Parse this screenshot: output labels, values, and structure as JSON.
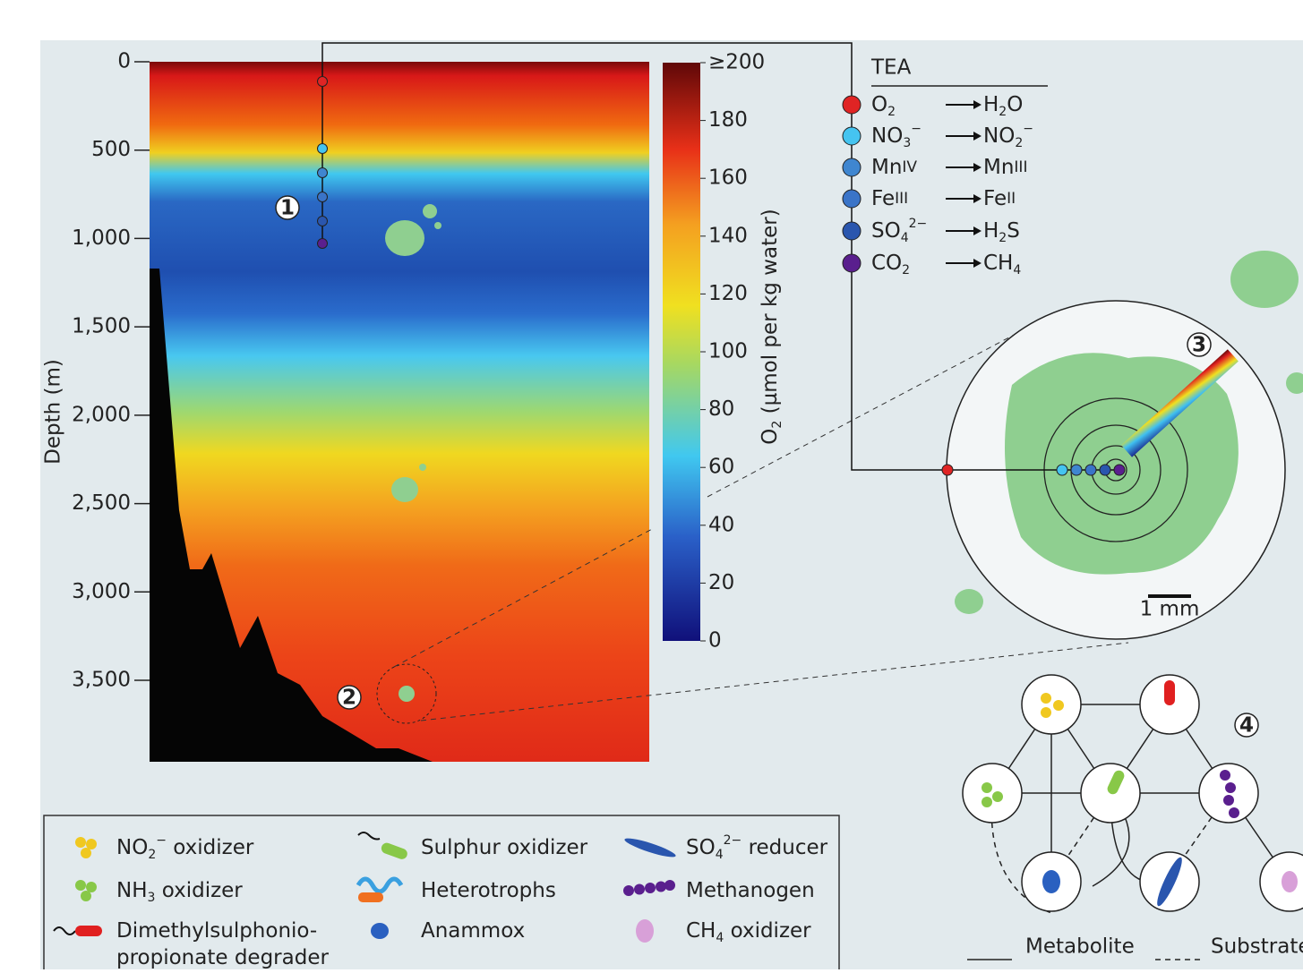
{
  "depth_axis": {
    "label": "Depth (m)",
    "ticks": [
      0,
      500,
      {
        "value": 1000,
        "label": "1,000"
      },
      {
        "value": 1500,
        "label": "1,500"
      },
      {
        "value": 2000,
        "label": "2,000"
      },
      {
        "value": 2500,
        "label": "2,500"
      },
      {
        "value": 3000,
        "label": "3,000"
      },
      {
        "value": 3500,
        "label": "3,500"
      }
    ]
  },
  "colorbar": {
    "label": [
      "O",
      {
        "sub": "2"
      },
      " (µmol per kg water)"
    ],
    "ticks": [
      0,
      20,
      40,
      60,
      80,
      100,
      120,
      140,
      160,
      180,
      {
        "value": 200,
        "label": "≥200"
      }
    ]
  },
  "markers": [
    "1",
    "2",
    "3",
    "4"
  ],
  "tea": {
    "title": "TEA",
    "rows": [
      {
        "from": [
          "O",
          {
            "sub": "2"
          }
        ],
        "to": [
          "H",
          {
            "sub": "2"
          },
          "O"
        ],
        "color": "#e02424"
      },
      {
        "from": [
          "NO",
          {
            "sub": "3"
          },
          {
            "sup": "−"
          }
        ],
        "to": [
          "NO",
          {
            "sub": "2"
          },
          {
            "sup": "−"
          }
        ],
        "color": "#45c4f0"
      },
      {
        "from": [
          "Mn",
          {
            "sc": "IV"
          }
        ],
        "to": [
          "Mn",
          {
            "sc": "III"
          }
        ],
        "color": "#3f86d0"
      },
      {
        "from": [
          "Fe",
          {
            "sc": "III"
          }
        ],
        "to": [
          "Fe",
          {
            "sc": "II"
          }
        ],
        "color": "#3a74c8"
      },
      {
        "from": [
          "SO",
          {
            "sub": "4"
          },
          {
            "sup": "2−"
          }
        ],
        "to": [
          "H",
          {
            "sub": "2"
          },
          "S"
        ],
        "color": "#2a56ae"
      },
      {
        "from": [
          "CO",
          {
            "sub": "2"
          }
        ],
        "to": [
          "CH",
          {
            "sub": "4"
          }
        ],
        "color": "#5a1f8e"
      }
    ]
  },
  "scale_bar": "1 mm",
  "legend": [
    {
      "text": [
        [
          "NO",
          {
            "sub": "2"
          },
          {
            "sup": "−"
          },
          " oxidizer"
        ]
      ],
      "icon": "dots-yellow"
    },
    {
      "text": [
        [
          "NH",
          {
            "sub": "3"
          },
          " oxidizer"
        ]
      ],
      "icon": "dots-green"
    },
    {
      "text": [
        [
          "Dimethylsulphonio-"
        ],
        [
          "propionate degrader"
        ]
      ],
      "icon": "red-rod"
    },
    {
      "text": [
        [
          "Sulphur oxidizer"
        ]
      ],
      "icon": "green-rod"
    },
    {
      "text": [
        [
          "Heterotrophs"
        ]
      ],
      "icon": "hetero"
    },
    {
      "text": [
        [
          "Anammox"
        ]
      ],
      "icon": "anammox"
    },
    {
      "text": [
        [
          "SO",
          {
            "sub": "4"
          },
          {
            "sup": "2−"
          },
          " reducer"
        ]
      ],
      "icon": "sulfate"
    },
    {
      "text": [
        [
          "Methanogen"
        ]
      ],
      "icon": "methanogen"
    },
    {
      "text": [
        [
          "CH",
          {
            "sub": "4"
          },
          " oxidizer"
        ]
      ],
      "icon": "ch4"
    }
  ],
  "network_legend": {
    "solid": "Metabolite",
    "dashed": "Substrate"
  }
}
